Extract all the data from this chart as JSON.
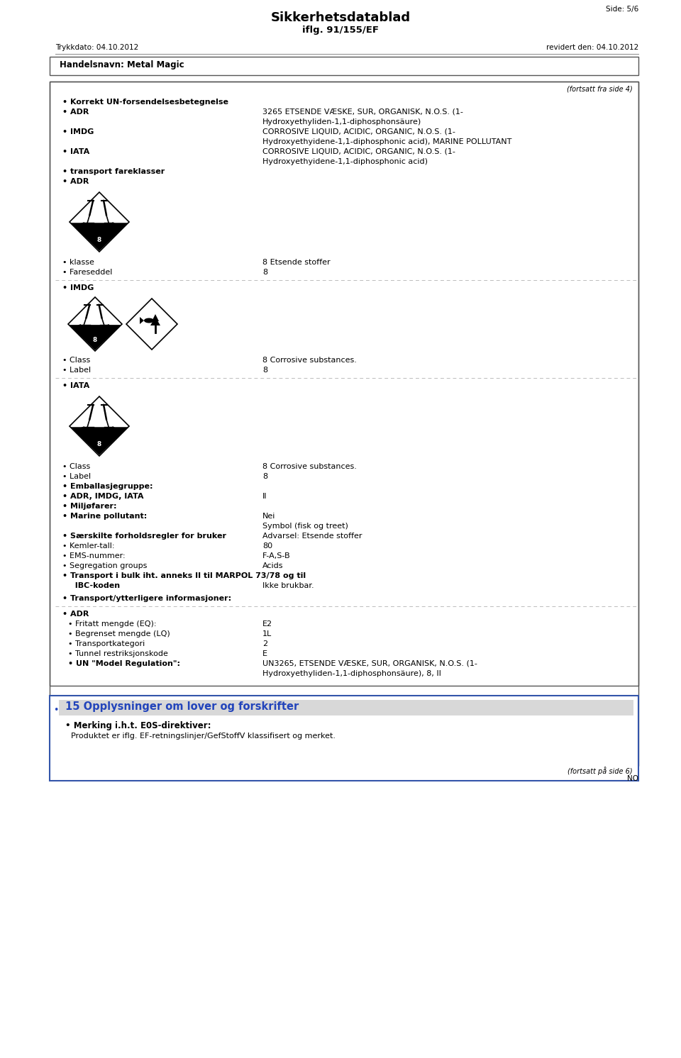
{
  "title": "Sikkerhetsdatablad",
  "subtitle": "iflg. 91/155/EF",
  "page_ref": "Side: 5/6",
  "trykkdato": "Trykkdato: 04.10.2012",
  "revidert": "revidert den: 04.10.2012",
  "handelsnavn_label": "Handelsnavn: Metal Magic",
  "fortsatt_fra": "(fortsatt fra side 4)",
  "fortsatt_pa": "(fortsatt på side 6)",
  "bg_color": "#ffffff",
  "dashed_color": "#bbbbbb",
  "content": {
    "korrekt_label": "• Korrekt UN-forsendelsesbetegnelse",
    "adr_label": "• ADR",
    "adr_line1": "3265 ETSENDE VÆSKE, SUR, ORGANISK, N.O.S. (1-",
    "adr_line2": "Hydroxyethyliden-1,1-diphosphonsäure)",
    "imdg_label": "• IMDG",
    "imdg_line1": "CORROSIVE LIQUID, ACIDIC, ORGANIC, N.O.S. (1-",
    "imdg_line2": "Hydroxyethyidene-1,1-diphosphonic acid), MARINE POLLUTANT",
    "iata_label": "• IATA",
    "iata_line1": "CORROSIVE LIQUID, ACIDIC, ORGANIC, N.O.S. (1-",
    "iata_line2": "Hydroxyethyidene-1,1-diphosphonic acid)",
    "transport_fareklasser": "• transport fareklasser",
    "adr_section": "• ADR",
    "klasse_label": "• klasse",
    "klasse_value": "8 Etsende stoffer",
    "fareseddel_label": "• Fareseddel",
    "fareseddel_value": "8",
    "imdg_section": "• IMDG",
    "imdg_class_label": "• Class",
    "imdg_class_value": "8 Corrosive substances.",
    "imdg_label2": "• Label",
    "imdg_label2_value": "8",
    "iata_section": "• IATA",
    "iata_class_label": "• Class",
    "iata_class_value": "8 Corrosive substances.",
    "iata_label2": "• Label",
    "iata_label2_value": "8",
    "emballasje_label": "• Emballasjegruppe:",
    "adr_imdg_iata_label": "• ADR, IMDG, IATA",
    "adr_imdg_iata_value": "II",
    "miljofarer_label": "• Miljøfarer:",
    "marine_label": "• Marine pollutant:",
    "marine_value": "Nei",
    "marine_value2": "Symbol (fisk og treet)",
    "saerskilte_label": "• Særskilte forholdsregler for bruker",
    "saerskilte_value": "Advarsel: Etsende stoffer",
    "kemler_label": "• Kemler-tall:",
    "kemler_value": "80",
    "ems_label": "• EMS-nummer:",
    "ems_value": "F-A,S-B",
    "segregation_label": "• Segregation groups",
    "segregation_value": "Acids",
    "transport_bulk_label": "• Transport i bulk iht. anneks II til MARPOL 73/78 og til",
    "ibc_label": "  IBC-koden",
    "ibc_value": "Ikke brukbar.",
    "transport_ytterligere_label": "• Transport/ytterligere informasjoner:",
    "adr_sub_label": "• ADR",
    "fritatt_label": "• Fritatt mengde (EQ):",
    "fritatt_value": "E2",
    "begrenset_label": "• Begrenset mengde (LQ)",
    "begrenset_value": "1L",
    "transportkategori_label": "• Transportkategori",
    "transportkategori_value": "2",
    "tunnel_label": "• Tunnel restriksjonskode",
    "tunnel_value": "E",
    "un_model_label": "• UN \"Model Regulation\":",
    "un_model_line1": "UN3265, ETSENDE VÆSKE, SUR, ORGANISK, N.O.S. (1-",
    "un_model_line2": "Hydroxyethyliden-1,1-diphosphonsäure), 8, II"
  },
  "section15": {
    "title": "15 Opplysninger om lover og forskrifter",
    "merking_label": "• Merking i.h.t. E0S-direktiver:",
    "merking_value": "Produktet er iflg. EF-retningslinjer/GefStoffV klassifisert og merket.",
    "header_bg": "#d0d0d0",
    "box_border": "#3355aa",
    "text_color": "#2244bb"
  }
}
